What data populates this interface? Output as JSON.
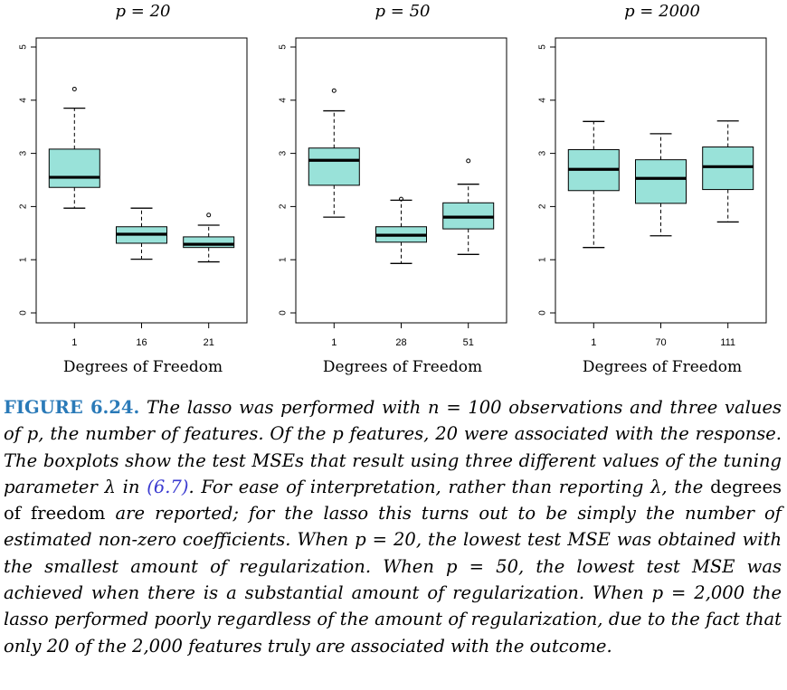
{
  "chart_data": [
    {
      "type": "box",
      "title": "p = 20",
      "xlabel": "Degrees of Freedom",
      "ylim": [
        0,
        5
      ],
      "yticks": [
        "0",
        "1",
        "2",
        "3",
        "4",
        "5"
      ],
      "categories": [
        "1",
        "16",
        "21"
      ],
      "boxes": [
        {
          "whisker_low": 1.97,
          "q1": 2.36,
          "median": 2.55,
          "q3": 3.08,
          "whisker_high": 3.85,
          "outliers": [
            4.21
          ]
        },
        {
          "whisker_low": 1.01,
          "q1": 1.31,
          "median": 1.48,
          "q3": 1.62,
          "whisker_high": 1.97,
          "outliers": []
        },
        {
          "whisker_low": 0.96,
          "q1": 1.23,
          "median": 1.29,
          "q3": 1.43,
          "whisker_high": 1.65,
          "outliers": [
            1.84
          ]
        }
      ]
    },
    {
      "type": "box",
      "title": "p = 50",
      "xlabel": "Degrees of Freedom",
      "ylim": [
        0,
        5
      ],
      "yticks": [
        "0",
        "1",
        "2",
        "3",
        "4",
        "5"
      ],
      "categories": [
        "1",
        "28",
        "51"
      ],
      "boxes": [
        {
          "whisker_low": 1.8,
          "q1": 2.4,
          "median": 2.87,
          "q3": 3.1,
          "whisker_high": 3.8,
          "outliers": [
            4.18
          ]
        },
        {
          "whisker_low": 0.93,
          "q1": 1.33,
          "median": 1.46,
          "q3": 1.62,
          "whisker_high": 2.12,
          "outliers": [
            2.14
          ]
        },
        {
          "whisker_low": 1.1,
          "q1": 1.58,
          "median": 1.8,
          "q3": 2.07,
          "whisker_high": 2.42,
          "outliers": [
            2.86
          ]
        }
      ]
    },
    {
      "type": "box",
      "title": "p = 2000",
      "xlabel": "Degrees of Freedom",
      "ylim": [
        0,
        5
      ],
      "yticks": [
        "0",
        "1",
        "2",
        "3",
        "4",
        "5"
      ],
      "categories": [
        "1",
        "70",
        "111"
      ],
      "boxes": [
        {
          "whisker_low": 1.23,
          "q1": 2.3,
          "median": 2.7,
          "q3": 3.07,
          "whisker_high": 3.6,
          "outliers": []
        },
        {
          "whisker_low": 1.45,
          "q1": 2.06,
          "median": 2.53,
          "q3": 2.88,
          "whisker_high": 3.37,
          "outliers": []
        },
        {
          "whisker_low": 1.71,
          "q1": 2.32,
          "median": 2.75,
          "q3": 3.12,
          "whisker_high": 3.61,
          "outliers": []
        }
      ]
    }
  ],
  "colors": {
    "box_fill": "#99e2d9",
    "caption_label": "#2a7ab8",
    "reference": "#3a3ad0"
  },
  "caption": {
    "label": "FIGURE 6.24.",
    "part1": " The lasso was performed with n = 100 observations and three values of p, the number of features. Of the p features, 20 were associated with the response. The boxplots show the test MSEs that result using three different values of the tuning parameter λ in ",
    "ref": "(6.7)",
    "part2": ". For ease of interpretation, rather than reporting λ, the ",
    "upright": "degrees of freedom",
    "part3": " are reported; for the lasso this turns out to be simply the number of estimated non-zero coefficients. When p = 20, the lowest test MSE was obtained with the smallest amount of regularization. When p = 50, the lowest test MSE was achieved when there is a substantial amount of regularization. When p = 2,000 the lasso performed poorly regardless of the amount of regularization, due to the fact that only 20 of the 2,000 features truly are associated with the outcome."
  }
}
